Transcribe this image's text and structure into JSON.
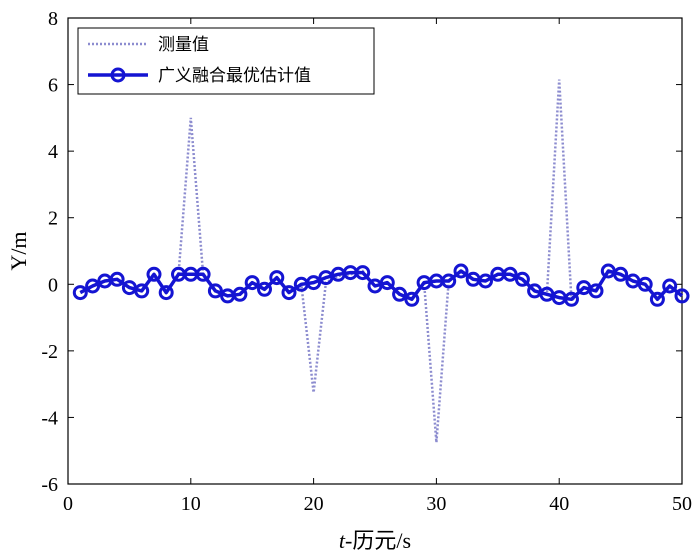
{
  "chart_data": {
    "type": "line",
    "xlabel": "t-历元/s",
    "ylabel": "Y/m",
    "xlim": [
      0,
      50
    ],
    "ylim": [
      -6,
      8
    ],
    "xticks": [
      0,
      10,
      20,
      30,
      40,
      50
    ],
    "yticks": [
      -6,
      -4,
      -2,
      0,
      2,
      4,
      6,
      8
    ],
    "grid": false,
    "legend_position": "top-left",
    "series": [
      {
        "name": "测量值",
        "color": "#8c8ccf",
        "style": "dotted",
        "x": [
          1,
          2,
          3,
          4,
          5,
          6,
          7,
          8,
          9,
          10,
          11,
          12,
          13,
          14,
          15,
          16,
          17,
          18,
          19,
          20,
          21,
          22,
          23,
          24,
          25,
          26,
          27,
          28,
          29,
          30,
          31,
          32,
          33,
          34,
          35,
          36,
          37,
          38,
          39,
          40,
          41,
          42,
          43,
          44,
          45,
          46,
          47,
          48,
          49,
          50
        ],
        "values": [
          -0.25,
          -0.05,
          0.1,
          0.15,
          -0.1,
          -0.2,
          0.3,
          -0.25,
          0.3,
          5.0,
          0.3,
          -0.2,
          -0.35,
          -0.3,
          0.05,
          -0.15,
          0.2,
          -0.25,
          0.0,
          -3.25,
          0.05,
          0.25,
          0.3,
          0.4,
          -0.05,
          0.05,
          -0.3,
          -0.45,
          0.05,
          -4.75,
          0.1,
          0.4,
          0.15,
          0.1,
          0.3,
          0.3,
          0.15,
          -0.2,
          -0.3,
          6.15,
          -0.5,
          -0.1,
          -0.2,
          0.4,
          0.3,
          0.1,
          0.0,
          -0.45,
          -0.05,
          -0.35
        ]
      },
      {
        "name": "广义融合最优估计值",
        "color": "#1414d2",
        "style": "solid-circle",
        "x": [
          1,
          2,
          3,
          4,
          5,
          6,
          7,
          8,
          9,
          10,
          11,
          12,
          13,
          14,
          15,
          16,
          17,
          18,
          19,
          20,
          21,
          22,
          23,
          24,
          25,
          26,
          27,
          28,
          29,
          30,
          31,
          32,
          33,
          34,
          35,
          36,
          37,
          38,
          39,
          40,
          41,
          42,
          43,
          44,
          45,
          46,
          47,
          48,
          49,
          50
        ],
        "values": [
          -0.25,
          -0.05,
          0.1,
          0.15,
          -0.1,
          -0.2,
          0.3,
          -0.25,
          0.3,
          0.3,
          0.3,
          -0.2,
          -0.35,
          -0.3,
          0.05,
          -0.15,
          0.2,
          -0.25,
          0.0,
          0.05,
          0.2,
          0.3,
          0.35,
          0.35,
          -0.05,
          0.05,
          -0.3,
          -0.45,
          0.05,
          0.1,
          0.1,
          0.4,
          0.15,
          0.1,
          0.3,
          0.3,
          0.15,
          -0.2,
          -0.3,
          -0.4,
          -0.45,
          -0.1,
          -0.2,
          0.4,
          0.3,
          0.1,
          0.0,
          -0.45,
          -0.05,
          -0.35
        ]
      }
    ]
  }
}
